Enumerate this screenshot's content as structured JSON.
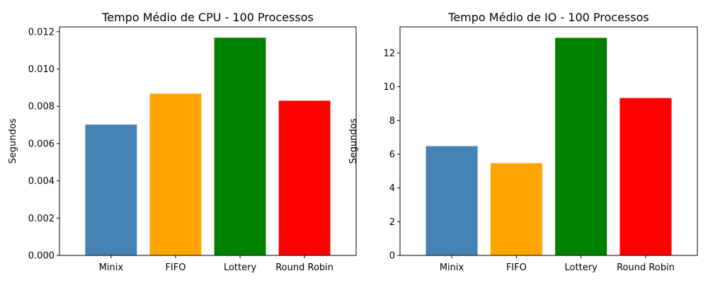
{
  "chart_data": [
    {
      "type": "bar",
      "title": "Tempo Médio de CPU - 100 Processos",
      "xlabel": "",
      "ylabel": "Segundos",
      "categories": [
        "Minix",
        "FIFO",
        "Lottery",
        "Round Robin"
      ],
      "values": [
        0.00702,
        0.00868,
        0.01168,
        0.0083
      ],
      "colors": [
        "#4682b4",
        "#ffa500",
        "#008000",
        "#ff0000"
      ],
      "ylim": [
        0,
        0.01226
      ],
      "yticks": [
        0.0,
        0.002,
        0.004,
        0.006,
        0.008,
        0.01,
        0.012
      ],
      "ytick_labels": [
        "0.000",
        "0.002",
        "0.004",
        "0.006",
        "0.008",
        "0.010",
        "0.012"
      ],
      "grid": false,
      "legend": "none"
    },
    {
      "type": "bar",
      "title": "Tempo Médio de IO - 100 Processos",
      "xlabel": "",
      "ylabel": "Segundos",
      "categories": [
        "Minix",
        "FIFO",
        "Lottery",
        "Round Robin"
      ],
      "values": [
        6.48,
        5.47,
        12.9,
        9.33
      ],
      "colors": [
        "#4682b4",
        "#ffa500",
        "#008000",
        "#ff0000"
      ],
      "ylim": [
        0,
        13.55
      ],
      "yticks": [
        0,
        2,
        4,
        6,
        8,
        10,
        12
      ],
      "ytick_labels": [
        "0",
        "2",
        "4",
        "6",
        "8",
        "10",
        "12"
      ],
      "grid": false,
      "legend": "none"
    }
  ]
}
